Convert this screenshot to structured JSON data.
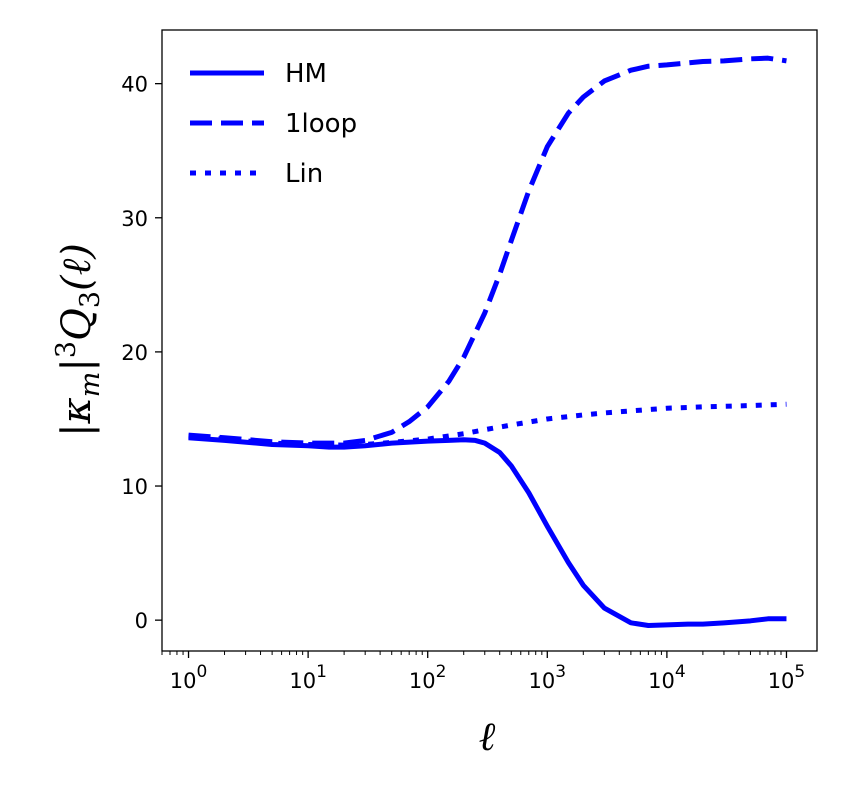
{
  "chart_data": {
    "type": "line",
    "xscale": "log",
    "xlabel": "ℓ",
    "ylabel": "|κm|³Q3(ℓ)",
    "ylabel_parts": {
      "bar_open": "|",
      "kappa": "κ",
      "sub_m": "m",
      "bar_close": "|",
      "sup_3": "3",
      "Q": "Q",
      "sub_3": "3",
      "arg": "(ℓ)"
    },
    "xlim": [
      0.6,
      180000
    ],
    "ylim": [
      -2.3,
      44
    ],
    "x_ticks": [
      {
        "value": 1,
        "base": "10",
        "exp": "0"
      },
      {
        "value": 10,
        "base": "10",
        "exp": "1"
      },
      {
        "value": 100,
        "base": "10",
        "exp": "2"
      },
      {
        "value": 1000,
        "base": "10",
        "exp": "3"
      },
      {
        "value": 10000,
        "base": "10",
        "exp": "4"
      },
      {
        "value": 100000,
        "base": "10",
        "exp": "5"
      }
    ],
    "y_ticks": [
      0,
      10,
      20,
      30,
      40
    ],
    "y_tick_labels": [
      "0",
      "10",
      "20",
      "30",
      "40"
    ],
    "grid": false,
    "legend_position": "top-left",
    "color": "#0000ff",
    "series": [
      {
        "name": "HM",
        "style": "solid",
        "x": [
          1,
          2,
          5,
          10,
          15,
          20,
          30,
          50,
          100,
          150,
          200,
          250,
          300,
          400,
          500,
          700,
          1000,
          1500,
          2000,
          3000,
          5000,
          7000,
          10000,
          15000,
          20000,
          30000,
          50000,
          70000,
          100000
        ],
        "y": [
          13.6,
          13.4,
          13.1,
          13.0,
          12.9,
          12.9,
          13.0,
          13.2,
          13.35,
          13.4,
          13.45,
          13.4,
          13.2,
          12.5,
          11.5,
          9.5,
          7.0,
          4.3,
          2.6,
          0.9,
          -0.2,
          -0.4,
          -0.35,
          -0.3,
          -0.3,
          -0.2,
          -0.05,
          0.1,
          0.1
        ]
      },
      {
        "name": "1loop",
        "style": "dashed",
        "x": [
          1,
          2,
          5,
          10,
          15,
          20,
          30,
          50,
          70,
          100,
          150,
          200,
          300,
          400,
          500,
          700,
          1000,
          1500,
          2000,
          3000,
          5000,
          7000,
          10000,
          15000,
          20000,
          30000,
          50000,
          70000,
          100000
        ],
        "y": [
          13.8,
          13.6,
          13.3,
          13.2,
          13.2,
          13.2,
          13.4,
          14.0,
          14.8,
          15.9,
          17.8,
          19.6,
          22.9,
          25.8,
          28.3,
          32.0,
          35.3,
          37.8,
          39.0,
          40.2,
          41.0,
          41.3,
          41.4,
          41.55,
          41.65,
          41.7,
          41.85,
          41.9,
          41.7
        ]
      },
      {
        "name": "Lin",
        "style": "dotted",
        "x": [
          1,
          2,
          5,
          10,
          20,
          30,
          50,
          100,
          200,
          300,
          500,
          1000,
          2000,
          3000,
          5000,
          10000,
          20000,
          50000,
          100000
        ],
        "y": [
          13.7,
          13.5,
          13.2,
          13.1,
          13.05,
          13.1,
          13.25,
          13.5,
          13.9,
          14.2,
          14.55,
          15.0,
          15.3,
          15.45,
          15.6,
          15.8,
          15.9,
          16.0,
          16.1
        ]
      }
    ]
  }
}
